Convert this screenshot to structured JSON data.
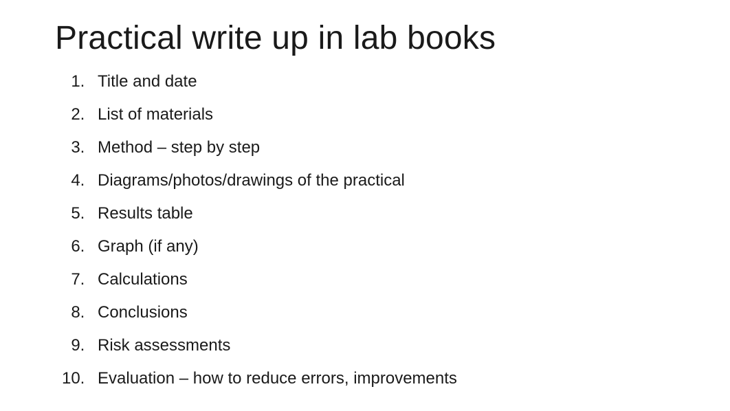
{
  "background_color": "#ffffff",
  "text_color": "#1a1a1a",
  "title": {
    "text": "Practical write up in lab books",
    "font_size_pt": 36,
    "font_weight": 400
  },
  "list": {
    "type": "ordered",
    "font_size_pt": 18,
    "font_weight": 400,
    "items": [
      "Title and date",
      "List of materials",
      "Method – step by step",
      "Diagrams/photos/drawings of the practical",
      "Results table",
      "Graph (if any)",
      "Calculations",
      "Conclusions",
      "Risk assessments",
      "Evaluation – how to reduce errors, improvements"
    ]
  }
}
